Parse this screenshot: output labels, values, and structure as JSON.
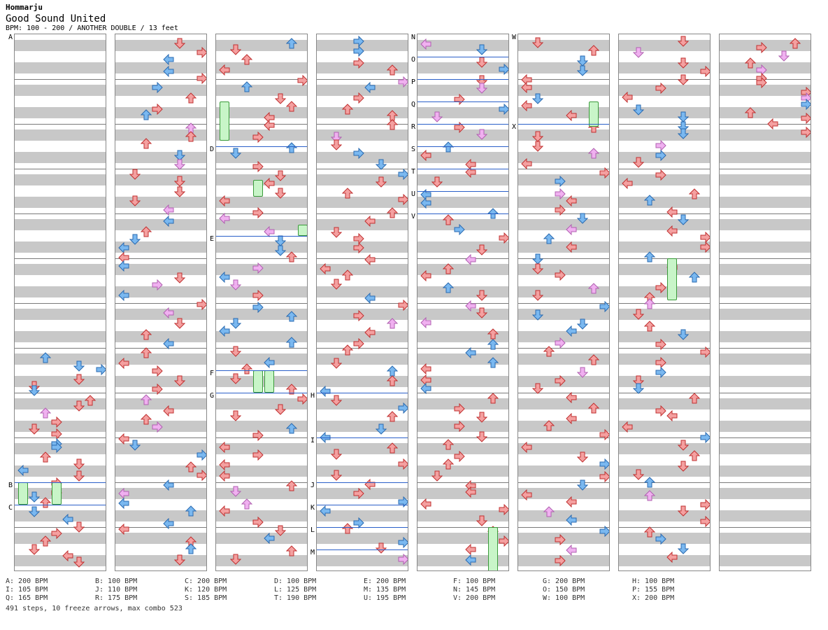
{
  "header": {
    "author": "Hommarju",
    "title": "Good Sound United",
    "meta": "BPM: 100 - 200 / ANOTHER DOUBLE / 13 feet"
  },
  "colors": {
    "band": "#c8c8c8",
    "measure_line": "#7a7a7a",
    "bpm_line": "#2a5fc8",
    "arrow_red": "#f4a0a0",
    "arrow_blue": "#7ab8f0",
    "arrow_pink": "#f0b0f0",
    "freeze_green": "#c8f5c8"
  },
  "segment_labels": [
    "A",
    "B",
    "C",
    "D",
    "E",
    "F",
    "G",
    "H",
    "I",
    "J",
    "K",
    "L",
    "M",
    "N",
    "O",
    "P",
    "Q",
    "R",
    "S",
    "T",
    "U",
    "V",
    "W",
    "X"
  ],
  "bpm_legend": [
    [
      "A: 200 BPM",
      "B: 100 BPM",
      "C: 200 BPM",
      "D: 100 BPM",
      "E: 200 BPM",
      "F: 100 BPM",
      "G: 200 BPM",
      "H: 100 BPM"
    ],
    [
      "I: 105 BPM",
      "J: 110 BPM",
      "K: 120 BPM",
      "L: 125 BPM",
      "M: 135 BPM",
      "N: 145 BPM",
      "O: 150 BPM",
      "P: 155 BPM"
    ],
    [
      "Q: 165 BPM",
      "R: 175 BPM",
      "S: 185 BPM",
      "T: 190 BPM",
      "U: 195 BPM",
      "V: 200 BPM",
      "W: 100 BPM",
      "X: 200 BPM"
    ]
  ],
  "summary": "491 steps, 10 freeze arrows, max combo 523"
}
